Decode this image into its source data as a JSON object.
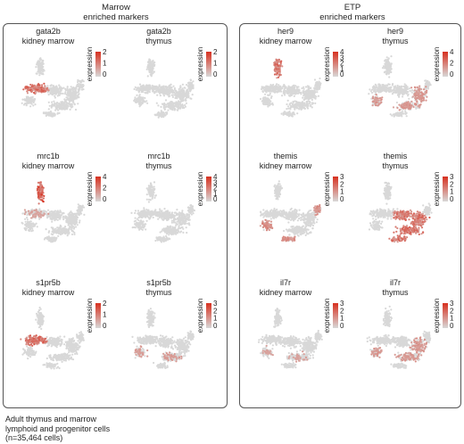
{
  "groups": [
    {
      "title_line1": "Marrow",
      "title_line2": "enriched markers"
    },
    {
      "title_line1": "ETP",
      "title_line2": "enriched markers"
    }
  ],
  "colors": {
    "low": "#d8d8d8",
    "high": "#d7301f",
    "box": "#555555"
  },
  "legend_label": "expression",
  "footer": "Adult thymus and marrow\nlymphoid and progenitor cells\n(n=35,464 cells)",
  "chart_data": [
    {
      "type": "scatter",
      "gene": "gata2b",
      "tissue": "kidney marrow",
      "scale_ticks": [
        "2",
        "1",
        "0"
      ],
      "hotspot": "marrow-center"
    },
    {
      "type": "scatter",
      "gene": "gata2b",
      "tissue": "thymus",
      "scale_ticks": [
        "2",
        "1",
        "0"
      ],
      "hotspot": "none"
    },
    {
      "type": "scatter",
      "gene": "her9",
      "tissue": "kidney marrow",
      "scale_ticks": [
        "4",
        "3",
        "2",
        "1",
        "0"
      ],
      "hotspot": "top-cluster"
    },
    {
      "type": "scatter",
      "gene": "her9",
      "tissue": "thymus",
      "scale_ticks": [
        "4",
        "2",
        "0"
      ],
      "hotspot": "thymus-scatter"
    },
    {
      "type": "scatter",
      "gene": "mrc1b",
      "tissue": "kidney marrow",
      "scale_ticks": [
        "4",
        "2",
        "0"
      ],
      "hotspot": "top-cluster-strong"
    },
    {
      "type": "scatter",
      "gene": "mrc1b",
      "tissue": "thymus",
      "scale_ticks": [
        "4",
        "3",
        "2",
        "1",
        "0"
      ],
      "hotspot": "none"
    },
    {
      "type": "scatter",
      "gene": "themis",
      "tissue": "kidney marrow",
      "scale_ticks": [
        "3",
        "2",
        "1",
        "0"
      ],
      "hotspot": "marrow-edges"
    },
    {
      "type": "scatter",
      "gene": "themis",
      "tissue": "thymus",
      "scale_ticks": [
        "3",
        "2",
        "1",
        "0"
      ],
      "hotspot": "thymus-broad"
    },
    {
      "type": "scatter",
      "gene": "s1pr5b",
      "tissue": "kidney marrow",
      "scale_ticks": [
        "2",
        "1",
        "0"
      ],
      "hotspot": "marrow-center"
    },
    {
      "type": "scatter",
      "gene": "s1pr5b",
      "tissue": "thymus",
      "scale_ticks": [
        "3",
        "2",
        "1",
        "0"
      ],
      "hotspot": "thymus-light"
    },
    {
      "type": "scatter",
      "gene": "il7r",
      "tissue": "kidney marrow",
      "scale_ticks": [
        "3",
        "2",
        "1",
        "0"
      ],
      "hotspot": "marrow-light"
    },
    {
      "type": "scatter",
      "gene": "il7r",
      "tissue": "thymus",
      "scale_ticks": [
        "3",
        "2",
        "1",
        "0"
      ],
      "hotspot": "thymus-scatter"
    }
  ]
}
